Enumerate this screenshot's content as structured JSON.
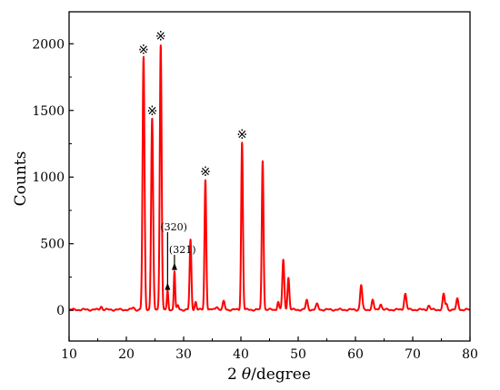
{
  "chart_data": {
    "type": "line",
    "xlabel_prefix": "2",
    "xlabel_theta": "θ",
    "xlabel_suffix": "/degree",
    "ylabel": "Counts",
    "xlim": [
      10,
      80
    ],
    "ylim": [
      -230,
      2240
    ],
    "x_ticks": [
      10,
      20,
      30,
      40,
      50,
      60,
      70,
      80
    ],
    "y_ticks": [
      0,
      500,
      1000,
      1500,
      2000
    ],
    "grid": false,
    "line_color": "#ff0000",
    "baseline": 5,
    "peaks": [
      {
        "x": 15.6,
        "h": 25,
        "w": 0.18
      },
      {
        "x": 21.2,
        "h": 15,
        "w": 0.2
      },
      {
        "x": 23.0,
        "h": 1890,
        "w": 0.17
      },
      {
        "x": 24.5,
        "h": 1430,
        "w": 0.17
      },
      {
        "x": 26.0,
        "h": 1990,
        "w": 0.16
      },
      {
        "x": 27.2,
        "h": 140,
        "w": 0.12
      },
      {
        "x": 28.4,
        "h": 290,
        "w": 0.12
      },
      {
        "x": 29.0,
        "h": 30,
        "w": 0.15
      },
      {
        "x": 31.2,
        "h": 520,
        "w": 0.15
      },
      {
        "x": 32.1,
        "h": 60,
        "w": 0.15
      },
      {
        "x": 33.8,
        "h": 975,
        "w": 0.15
      },
      {
        "x": 35.8,
        "h": 25,
        "w": 0.2
      },
      {
        "x": 37.0,
        "h": 60,
        "w": 0.18
      },
      {
        "x": 40.2,
        "h": 1255,
        "w": 0.15
      },
      {
        "x": 43.8,
        "h": 1120,
        "w": 0.15
      },
      {
        "x": 46.5,
        "h": 60,
        "w": 0.15
      },
      {
        "x": 47.4,
        "h": 370,
        "w": 0.17
      },
      {
        "x": 48.3,
        "h": 240,
        "w": 0.16
      },
      {
        "x": 51.5,
        "h": 70,
        "w": 0.18
      },
      {
        "x": 53.3,
        "h": 40,
        "w": 0.2
      },
      {
        "x": 61.0,
        "h": 185,
        "w": 0.18
      },
      {
        "x": 63.0,
        "h": 70,
        "w": 0.18
      },
      {
        "x": 64.4,
        "h": 45,
        "w": 0.18
      },
      {
        "x": 68.7,
        "h": 120,
        "w": 0.2
      },
      {
        "x": 72.8,
        "h": 30,
        "w": 0.2
      },
      {
        "x": 75.4,
        "h": 115,
        "w": 0.18
      },
      {
        "x": 75.9,
        "h": 40,
        "w": 0.15
      },
      {
        "x": 77.8,
        "h": 80,
        "w": 0.18
      }
    ],
    "peak_markers": [
      {
        "symbol": "※",
        "x": 23.0,
        "y": 1890
      },
      {
        "symbol": "※",
        "x": 24.5,
        "y": 1430
      },
      {
        "symbol": "※",
        "x": 26.0,
        "y": 1990
      },
      {
        "symbol": "※",
        "x": 33.8,
        "y": 975
      },
      {
        "symbol": "※",
        "x": 40.2,
        "y": 1255
      }
    ],
    "annotations": [
      {
        "text": "(320)",
        "x": 27.2,
        "y": 140
      },
      {
        "text": "(321)",
        "x": 28.4,
        "y": 290
      }
    ]
  }
}
